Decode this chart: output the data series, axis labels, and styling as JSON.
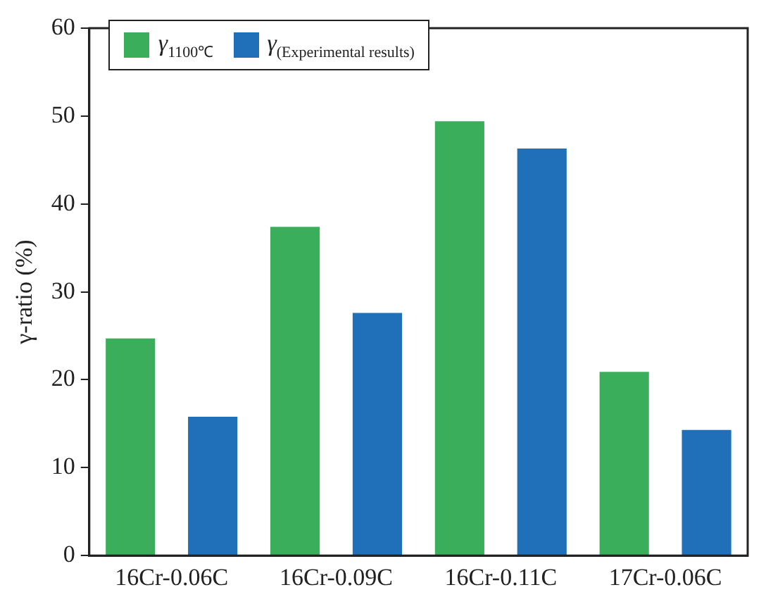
{
  "chart_data": {
    "type": "bar",
    "ylabel": "γ-ratio (%)",
    "categories": [
      "16Cr-0.06C",
      "16Cr-0.09C",
      "16Cr-0.11C",
      "17Cr-0.06C"
    ],
    "series": [
      {
        "name": "γ$_{1100℃}$",
        "color": "#3aae5a",
        "values": [
          24.7,
          37.4,
          49.4,
          20.9
        ]
      },
      {
        "name": "γ$_{(Experimental results)}$",
        "color": "#1f70b8",
        "values": [
          15.8,
          27.6,
          46.3,
          14.3
        ]
      }
    ],
    "ylim": [
      0,
      60
    ],
    "yticks": [
      0,
      10,
      20,
      30,
      40,
      50,
      60
    ],
    "grid": false,
    "legend": "top left"
  }
}
